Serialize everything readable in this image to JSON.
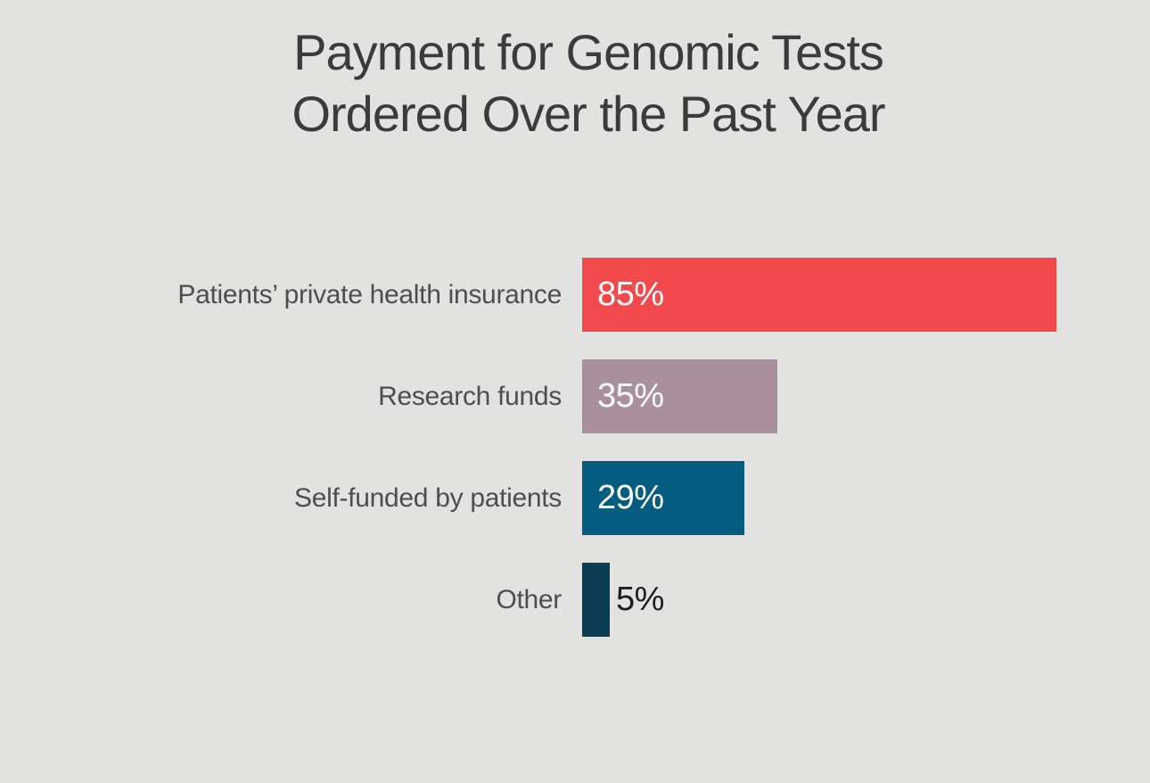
{
  "page": {
    "background": "#E2E2E1"
  },
  "chart": {
    "title_line1": "Payment for Genomic Tests",
    "title_line2": "Ordered Over the Past Year"
  },
  "chart_data": {
    "type": "bar",
    "orientation": "horizontal",
    "title": "Payment for Genomic Tests Ordered Over the Past Year",
    "categories": [
      "Patients’ private health insurance",
      "Research funds",
      "Self-funded by patients",
      "Other"
    ],
    "values": [
      85,
      35,
      29,
      5
    ],
    "value_labels": [
      "85%",
      "35%",
      "29%",
      "5%"
    ],
    "bar_colors": [
      "#F1494C",
      "#A9909C",
      "#045D81",
      "#0A3D53"
    ],
    "value_label_inside": [
      true,
      true,
      true,
      false
    ],
    "xlim": [
      0,
      85
    ],
    "xlabel": "",
    "ylabel": "",
    "axes_visible": false,
    "gridlines": false,
    "legend": "none",
    "colors": {
      "background": "#E2E2E1",
      "title_text": "#3B3B3B",
      "category_text": "#4E4E50",
      "value_text_inside": "#FFFFFF",
      "value_text_outside": "#1E1E1E"
    }
  }
}
